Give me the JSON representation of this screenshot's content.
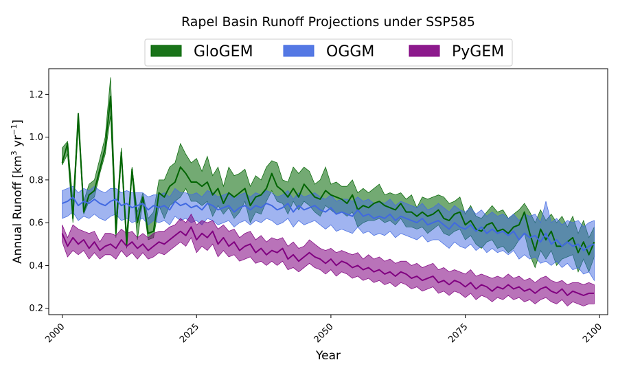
{
  "chart_data": {
    "type": "area",
    "title": "Rapel Basin Runoff Projections under SSP585",
    "xlabel": "Year",
    "ylabel": "Annual Runoff [km³ yr⁻¹]",
    "ylabel_parts": {
      "base": "Annual Runoff [km",
      "exp1": "3",
      "mid": " yr",
      "exp2": "−1",
      "end": "]"
    },
    "xlim": [
      1997.5,
      2101.5
    ],
    "ylim": [
      0.17,
      1.32
    ],
    "xticks": [
      2000,
      2025,
      2050,
      2075,
      2100
    ],
    "yticks": [
      0.2,
      0.4,
      0.6,
      0.8,
      1.0,
      1.2
    ],
    "legend_position": "top-center, above plot",
    "series": [
      {
        "name": "GloGEM",
        "color": "#006400",
        "band_alpha": 0.55,
        "start_year": 2000,
        "mean": [
          0.88,
          0.97,
          0.62,
          1.11,
          0.65,
          0.73,
          0.75,
          0.85,
          0.95,
          1.19,
          0.55,
          0.93,
          0.5,
          0.85,
          0.6,
          0.72,
          0.55,
          0.56,
          0.74,
          0.72,
          0.77,
          0.79,
          0.86,
          0.83,
          0.79,
          0.79,
          0.77,
          0.79,
          0.73,
          0.76,
          0.69,
          0.74,
          0.72,
          0.74,
          0.76,
          0.68,
          0.72,
          0.73,
          0.76,
          0.83,
          0.77,
          0.75,
          0.72,
          0.76,
          0.72,
          0.78,
          0.75,
          0.72,
          0.71,
          0.75,
          0.73,
          0.72,
          0.71,
          0.69,
          0.73,
          0.66,
          0.68,
          0.67,
          0.69,
          0.7,
          0.68,
          0.67,
          0.66,
          0.69,
          0.65,
          0.65,
          0.63,
          0.65,
          0.63,
          0.64,
          0.66,
          0.62,
          0.61,
          0.64,
          0.65,
          0.59,
          0.61,
          0.57,
          0.56,
          0.59,
          0.6,
          0.56,
          0.57,
          0.55,
          0.58,
          0.59,
          0.65,
          0.55,
          0.47,
          0.57,
          0.52,
          0.56,
          0.49,
          0.49,
          0.51,
          0.53,
          0.46,
          0.51,
          0.45,
          0.51
        ],
        "upper": [
          0.95,
          0.98,
          0.7,
          1.11,
          0.7,
          0.78,
          0.8,
          0.9,
          1.0,
          1.28,
          0.62,
          0.95,
          0.55,
          0.86,
          0.65,
          0.74,
          0.62,
          0.65,
          0.8,
          0.8,
          0.86,
          0.88,
          0.97,
          0.92,
          0.88,
          0.9,
          0.84,
          0.91,
          0.82,
          0.86,
          0.77,
          0.86,
          0.82,
          0.83,
          0.85,
          0.77,
          0.82,
          0.8,
          0.86,
          0.89,
          0.88,
          0.8,
          0.79,
          0.86,
          0.83,
          0.86,
          0.84,
          0.78,
          0.8,
          0.86,
          0.78,
          0.79,
          0.77,
          0.77,
          0.8,
          0.74,
          0.76,
          0.74,
          0.76,
          0.78,
          0.73,
          0.74,
          0.73,
          0.74,
          0.71,
          0.73,
          0.67,
          0.72,
          0.71,
          0.72,
          0.73,
          0.72,
          0.69,
          0.7,
          0.72,
          0.64,
          0.68,
          0.63,
          0.62,
          0.65,
          0.68,
          0.65,
          0.66,
          0.62,
          0.64,
          0.66,
          0.69,
          0.65,
          0.6,
          0.66,
          0.61,
          0.64,
          0.6,
          0.63,
          0.58,
          0.63,
          0.55,
          0.61,
          0.53,
          0.58
        ],
        "lower": [
          0.87,
          0.92,
          0.6,
          1.05,
          0.64,
          0.7,
          0.72,
          0.83,
          0.92,
          1.1,
          0.53,
          0.9,
          0.48,
          0.82,
          0.52,
          0.7,
          0.52,
          0.53,
          0.68,
          0.62,
          0.68,
          0.7,
          0.72,
          0.76,
          0.7,
          0.7,
          0.68,
          0.7,
          0.63,
          0.68,
          0.64,
          0.67,
          0.62,
          0.65,
          0.7,
          0.6,
          0.65,
          0.64,
          0.7,
          0.75,
          0.7,
          0.69,
          0.64,
          0.7,
          0.66,
          0.7,
          0.68,
          0.65,
          0.63,
          0.68,
          0.66,
          0.64,
          0.65,
          0.63,
          0.65,
          0.58,
          0.6,
          0.61,
          0.61,
          0.62,
          0.6,
          0.61,
          0.59,
          0.62,
          0.58,
          0.58,
          0.57,
          0.58,
          0.55,
          0.57,
          0.59,
          0.55,
          0.54,
          0.56,
          0.57,
          0.52,
          0.54,
          0.5,
          0.48,
          0.51,
          0.52,
          0.48,
          0.49,
          0.46,
          0.48,
          0.52,
          0.55,
          0.45,
          0.39,
          0.47,
          0.43,
          0.47,
          0.4,
          0.43,
          0.44,
          0.45,
          0.37,
          0.43,
          0.37,
          0.44
        ]
      },
      {
        "name": "OGGM",
        "color": "#4169E1",
        "band_alpha": 0.5,
        "start_year": 2000,
        "mean": [
          0.69,
          0.7,
          0.72,
          0.68,
          0.7,
          0.69,
          0.71,
          0.69,
          0.68,
          0.7,
          0.71,
          0.68,
          0.69,
          0.67,
          0.68,
          0.69,
          0.66,
          0.68,
          0.67,
          0.68,
          0.66,
          0.7,
          0.68,
          0.69,
          0.67,
          0.68,
          0.66,
          0.69,
          0.68,
          0.66,
          0.67,
          0.68,
          0.65,
          0.67,
          0.68,
          0.66,
          0.68,
          0.67,
          0.69,
          0.68,
          0.66,
          0.67,
          0.69,
          0.65,
          0.68,
          0.66,
          0.67,
          0.68,
          0.66,
          0.65,
          0.67,
          0.64,
          0.65,
          0.64,
          0.63,
          0.66,
          0.63,
          0.64,
          0.62,
          0.63,
          0.62,
          0.64,
          0.61,
          0.63,
          0.62,
          0.61,
          0.6,
          0.62,
          0.59,
          0.6,
          0.61,
          0.59,
          0.57,
          0.6,
          0.58,
          0.57,
          0.59,
          0.56,
          0.58,
          0.55,
          0.57,
          0.55,
          0.56,
          0.54,
          0.56,
          0.52,
          0.55,
          0.53,
          0.54,
          0.51,
          0.55,
          0.5,
          0.52,
          0.49,
          0.51,
          0.49,
          0.5,
          0.47,
          0.49,
          0.5
        ],
        "upper": [
          0.75,
          0.76,
          0.77,
          0.74,
          0.76,
          0.75,
          0.77,
          0.75,
          0.74,
          0.76,
          0.76,
          0.74,
          0.75,
          0.74,
          0.74,
          0.74,
          0.72,
          0.73,
          0.73,
          0.74,
          0.72,
          0.76,
          0.74,
          0.74,
          0.73,
          0.74,
          0.72,
          0.75,
          0.74,
          0.72,
          0.73,
          0.74,
          0.71,
          0.73,
          0.74,
          0.72,
          0.74,
          0.73,
          0.75,
          0.74,
          0.72,
          0.73,
          0.75,
          0.71,
          0.74,
          0.72,
          0.73,
          0.74,
          0.72,
          0.71,
          0.73,
          0.7,
          0.71,
          0.71,
          0.7,
          0.72,
          0.7,
          0.71,
          0.69,
          0.7,
          0.69,
          0.71,
          0.68,
          0.7,
          0.69,
          0.68,
          0.67,
          0.69,
          0.66,
          0.67,
          0.69,
          0.67,
          0.65,
          0.68,
          0.66,
          0.65,
          0.67,
          0.64,
          0.66,
          0.63,
          0.65,
          0.63,
          0.64,
          0.62,
          0.64,
          0.61,
          0.64,
          0.63,
          0.64,
          0.6,
          0.7,
          0.6,
          0.62,
          0.59,
          0.61,
          0.6,
          0.61,
          0.58,
          0.6,
          0.61
        ],
        "lower": [
          0.62,
          0.63,
          0.65,
          0.61,
          0.63,
          0.62,
          0.64,
          0.62,
          0.61,
          0.63,
          0.64,
          0.61,
          0.62,
          0.6,
          0.61,
          0.62,
          0.59,
          0.61,
          0.6,
          0.61,
          0.59,
          0.63,
          0.61,
          0.62,
          0.6,
          0.61,
          0.59,
          0.62,
          0.61,
          0.59,
          0.6,
          0.61,
          0.58,
          0.6,
          0.61,
          0.59,
          0.61,
          0.6,
          0.62,
          0.61,
          0.59,
          0.6,
          0.62,
          0.58,
          0.61,
          0.59,
          0.6,
          0.61,
          0.59,
          0.57,
          0.59,
          0.56,
          0.57,
          0.56,
          0.55,
          0.58,
          0.55,
          0.56,
          0.54,
          0.55,
          0.54,
          0.56,
          0.53,
          0.55,
          0.54,
          0.53,
          0.52,
          0.54,
          0.51,
          0.52,
          0.52,
          0.5,
          0.48,
          0.51,
          0.49,
          0.48,
          0.5,
          0.47,
          0.49,
          0.46,
          0.48,
          0.46,
          0.47,
          0.45,
          0.47,
          0.43,
          0.45,
          0.43,
          0.44,
          0.41,
          0.42,
          0.4,
          0.42,
          0.39,
          0.41,
          0.38,
          0.39,
          0.36,
          0.37,
          0.33
        ]
      },
      {
        "name": "PyGEM",
        "color": "#800080",
        "band_alpha": 0.55,
        "start_year": 2000,
        "mean": [
          0.55,
          0.49,
          0.53,
          0.5,
          0.52,
          0.48,
          0.51,
          0.47,
          0.49,
          0.5,
          0.48,
          0.52,
          0.49,
          0.51,
          0.48,
          0.5,
          0.47,
          0.49,
          0.51,
          0.5,
          0.52,
          0.54,
          0.56,
          0.54,
          0.58,
          0.52,
          0.55,
          0.53,
          0.56,
          0.5,
          0.53,
          0.49,
          0.51,
          0.47,
          0.49,
          0.5,
          0.46,
          0.48,
          0.45,
          0.47,
          0.46,
          0.48,
          0.43,
          0.45,
          0.42,
          0.44,
          0.46,
          0.44,
          0.43,
          0.41,
          0.43,
          0.4,
          0.42,
          0.41,
          0.39,
          0.4,
          0.38,
          0.39,
          0.37,
          0.38,
          0.36,
          0.37,
          0.35,
          0.37,
          0.36,
          0.34,
          0.35,
          0.33,
          0.34,
          0.35,
          0.32,
          0.33,
          0.31,
          0.33,
          0.32,
          0.3,
          0.32,
          0.29,
          0.31,
          0.3,
          0.28,
          0.3,
          0.29,
          0.31,
          0.29,
          0.3,
          0.28,
          0.29,
          0.27,
          0.29,
          0.3,
          0.28,
          0.27,
          0.29,
          0.26,
          0.28,
          0.27,
          0.26,
          0.27,
          0.27
        ],
        "upper": [
          0.59,
          0.53,
          0.59,
          0.57,
          0.56,
          0.55,
          0.56,
          0.51,
          0.55,
          0.55,
          0.54,
          0.57,
          0.55,
          0.56,
          0.53,
          0.55,
          0.53,
          0.55,
          0.56,
          0.56,
          0.58,
          0.59,
          0.62,
          0.6,
          0.64,
          0.59,
          0.61,
          0.6,
          0.61,
          0.57,
          0.59,
          0.56,
          0.57,
          0.53,
          0.55,
          0.56,
          0.52,
          0.54,
          0.51,
          0.53,
          0.52,
          0.53,
          0.49,
          0.51,
          0.48,
          0.49,
          0.52,
          0.5,
          0.48,
          0.47,
          0.48,
          0.46,
          0.47,
          0.46,
          0.45,
          0.46,
          0.43,
          0.45,
          0.43,
          0.44,
          0.42,
          0.43,
          0.41,
          0.42,
          0.42,
          0.4,
          0.41,
          0.39,
          0.4,
          0.41,
          0.38,
          0.39,
          0.37,
          0.38,
          0.37,
          0.36,
          0.38,
          0.35,
          0.36,
          0.35,
          0.34,
          0.35,
          0.34,
          0.36,
          0.34,
          0.35,
          0.33,
          0.34,
          0.32,
          0.34,
          0.35,
          0.33,
          0.32,
          0.33,
          0.31,
          0.32,
          0.32,
          0.31,
          0.32,
          0.31
        ],
        "lower": [
          0.51,
          0.44,
          0.47,
          0.45,
          0.47,
          0.43,
          0.46,
          0.43,
          0.45,
          0.45,
          0.43,
          0.47,
          0.44,
          0.46,
          0.43,
          0.46,
          0.43,
          0.44,
          0.46,
          0.45,
          0.47,
          0.49,
          0.51,
          0.49,
          0.53,
          0.46,
          0.49,
          0.47,
          0.5,
          0.44,
          0.47,
          0.44,
          0.45,
          0.42,
          0.43,
          0.44,
          0.41,
          0.42,
          0.4,
          0.42,
          0.4,
          0.42,
          0.38,
          0.39,
          0.37,
          0.39,
          0.41,
          0.39,
          0.38,
          0.36,
          0.38,
          0.35,
          0.37,
          0.36,
          0.34,
          0.35,
          0.33,
          0.34,
          0.32,
          0.33,
          0.31,
          0.32,
          0.3,
          0.32,
          0.31,
          0.29,
          0.3,
          0.28,
          0.29,
          0.3,
          0.27,
          0.28,
          0.26,
          0.28,
          0.27,
          0.25,
          0.27,
          0.24,
          0.26,
          0.25,
          0.23,
          0.25,
          0.24,
          0.26,
          0.24,
          0.25,
          0.23,
          0.24,
          0.22,
          0.24,
          0.25,
          0.23,
          0.22,
          0.24,
          0.21,
          0.23,
          0.22,
          0.21,
          0.22,
          0.22
        ]
      }
    ]
  }
}
